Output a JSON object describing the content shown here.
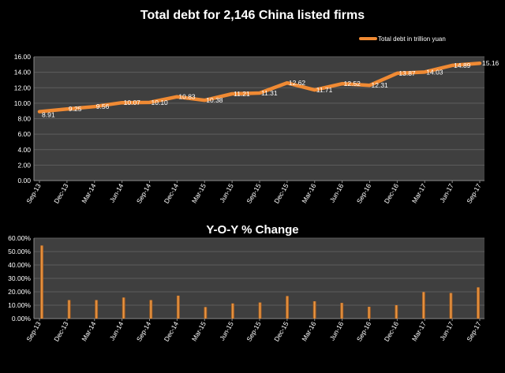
{
  "chart_data": [
    {
      "type": "line",
      "title": "Total debt for 2,146 China listed firms",
      "xlabel": "",
      "ylabel": "",
      "ylim": [
        0,
        16
      ],
      "yticks": [
        "0.00",
        "2.00",
        "4.00",
        "6.00",
        "8.00",
        "10.00",
        "12.00",
        "14.00",
        "16.00"
      ],
      "categories": [
        "Sep-13",
        "Dec-13",
        "Mar-14",
        "Jun-14",
        "Sep-14",
        "Dec-14",
        "Mar-15",
        "Jun-15",
        "Sep-15",
        "Dec-15",
        "Mar-16",
        "Jun-16",
        "Sep-16",
        "Dec-16",
        "Mar-17",
        "Jun-17",
        "Sep-17"
      ],
      "series": [
        {
          "name": "Total debt in trillion yuan",
          "values": [
            8.91,
            9.25,
            9.56,
            10.07,
            10.1,
            10.83,
            10.38,
            11.21,
            11.31,
            12.62,
            11.71,
            12.52,
            12.31,
            13.87,
            14.03,
            14.89,
            15.16
          ],
          "labels": [
            "8.91",
            "9.25",
            "9.56",
            "10.07",
            "10.10",
            "10.83",
            "10.38",
            "11.21",
            "11.31",
            "12.62",
            "11.71",
            "12.52",
            "12.31",
            "13.87",
            "14.03",
            "14.89",
            "15.16"
          ]
        }
      ],
      "grid": true,
      "legend_position": "top-right",
      "colors": {
        "line": "#f08a33",
        "plot_bg": "#3f3f3f",
        "grid": "#5e5e5e",
        "text": "#ffffff"
      }
    },
    {
      "type": "bar",
      "title": "Y-O-Y % Change",
      "xlabel": "",
      "ylabel": "",
      "ylim": [
        0,
        60
      ],
      "yticks": [
        "0.00%",
        "10.00%",
        "20.00%",
        "30.00%",
        "40.00%",
        "50.00%",
        "60.00%"
      ],
      "categories": [
        "Sep-13",
        "Dec-13",
        "Mar-14",
        "Jun-14",
        "Sep-14",
        "Dec-14",
        "Mar-15",
        "Jun-15",
        "Sep-15",
        "Dec-15",
        "Mar-16",
        "Jun-16",
        "Sep-16",
        "Dec-16",
        "Mar-17",
        "Jun-17",
        "Sep-17"
      ],
      "values": [
        54.5,
        13.8,
        13.8,
        15.7,
        13.8,
        17.1,
        8.6,
        11.3,
        12.0,
        16.8,
        12.9,
        11.7,
        8.8,
        10.0,
        19.8,
        19.1,
        23.3
      ],
      "grid": true,
      "colors": {
        "bar": "#f08a33",
        "plot_bg": "#3f3f3f",
        "grid": "#5e5e5e",
        "text": "#ffffff"
      }
    }
  ]
}
